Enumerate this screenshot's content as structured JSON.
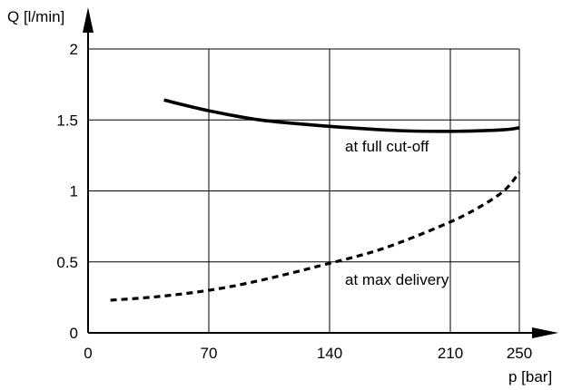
{
  "chart_data": {
    "type": "line",
    "xlabel": "p [bar]",
    "ylabel": "Q [l/min]",
    "xlim": [
      0,
      250
    ],
    "ylim": [
      0,
      2
    ],
    "x_ticks": [
      0,
      70,
      140,
      210,
      250
    ],
    "x_tick_labels": [
      "0",
      "70",
      "140",
      "210",
      "250"
    ],
    "y_ticks": [
      0,
      0.5,
      1,
      1.5,
      2
    ],
    "y_tick_labels": [
      "0",
      "0.5",
      "1",
      "1.5",
      "2"
    ],
    "grid": true,
    "series": [
      {
        "name": "at full cut-off",
        "style": "solid",
        "x": [
          44,
          70,
          100,
          140,
          180,
          210,
          240,
          250
        ],
        "y": [
          1.64,
          1.565,
          1.5,
          1.455,
          1.425,
          1.42,
          1.43,
          1.445
        ]
      },
      {
        "name": "at max delivery",
        "style": "dashed",
        "x": [
          13,
          40,
          70,
          100,
          140,
          170,
          200,
          220,
          240,
          250
        ],
        "y": [
          0.23,
          0.255,
          0.3,
          0.37,
          0.49,
          0.59,
          0.73,
          0.84,
          0.99,
          1.13
        ]
      }
    ]
  }
}
